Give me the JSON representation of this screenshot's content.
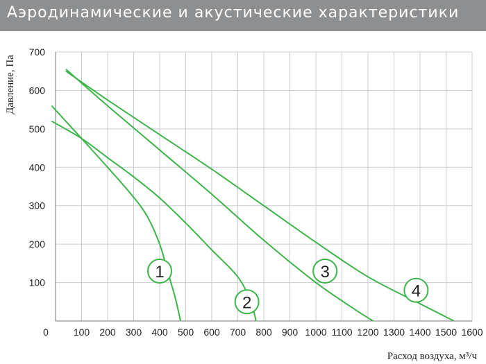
{
  "header": {
    "title": "Аэродинамические и акустические характеристики"
  },
  "colors": {
    "header_bg": "#8e8f91",
    "curve": "#3cb44a",
    "grid": "#c9cbcf",
    "axis": "#777777"
  },
  "chart_data": {
    "type": "line",
    "xlabel": "Расход воздуха, м³/ч",
    "ylabel": "Давление, Па",
    "xlim": [
      0,
      1600
    ],
    "ylim": [
      0,
      700
    ],
    "x_ticks": [
      "0",
      "100",
      "200",
      "300",
      "400",
      "500",
      "600",
      "700",
      "800",
      "900",
      "1000",
      "1100",
      "1200",
      "1300",
      "1400",
      "1500",
      "1600"
    ],
    "y_ticks": [
      "100",
      "200",
      "300",
      "400",
      "500",
      "600",
      "700"
    ],
    "grid": true,
    "series": [
      {
        "name": "1",
        "points": [
          [
            -15,
            560
          ],
          [
            100,
            475
          ],
          [
            200,
            400
          ],
          [
            290,
            330
          ],
          [
            350,
            275
          ],
          [
            400,
            200
          ],
          [
            430,
            130
          ],
          [
            460,
            60
          ],
          [
            480,
            0
          ]
        ]
      },
      {
        "name": "2",
        "points": [
          [
            -15,
            520
          ],
          [
            100,
            475
          ],
          [
            200,
            425
          ],
          [
            300,
            375
          ],
          [
            400,
            320
          ],
          [
            500,
            255
          ],
          [
            600,
            185
          ],
          [
            700,
            115
          ],
          [
            750,
            50
          ],
          [
            770,
            0
          ]
        ]
      },
      {
        "name": "3",
        "points": [
          [
            40,
            655
          ],
          [
            200,
            560
          ],
          [
            400,
            445
          ],
          [
            600,
            330
          ],
          [
            800,
            210
          ],
          [
            1000,
            100
          ],
          [
            1150,
            30
          ],
          [
            1220,
            0
          ]
        ]
      },
      {
        "name": "4",
        "points": [
          [
            40,
            650
          ],
          [
            200,
            575
          ],
          [
            400,
            485
          ],
          [
            600,
            395
          ],
          [
            800,
            300
          ],
          [
            1000,
            205
          ],
          [
            1200,
            115
          ],
          [
            1400,
            45
          ],
          [
            1530,
            0
          ]
        ]
      }
    ],
    "annotations": [
      {
        "text": "1",
        "x": 400,
        "y": 130
      },
      {
        "text": "2",
        "x": 735,
        "y": 50
      },
      {
        "text": "3",
        "x": 1035,
        "y": 130
      },
      {
        "text": "4",
        "x": 1385,
        "y": 80
      }
    ]
  }
}
